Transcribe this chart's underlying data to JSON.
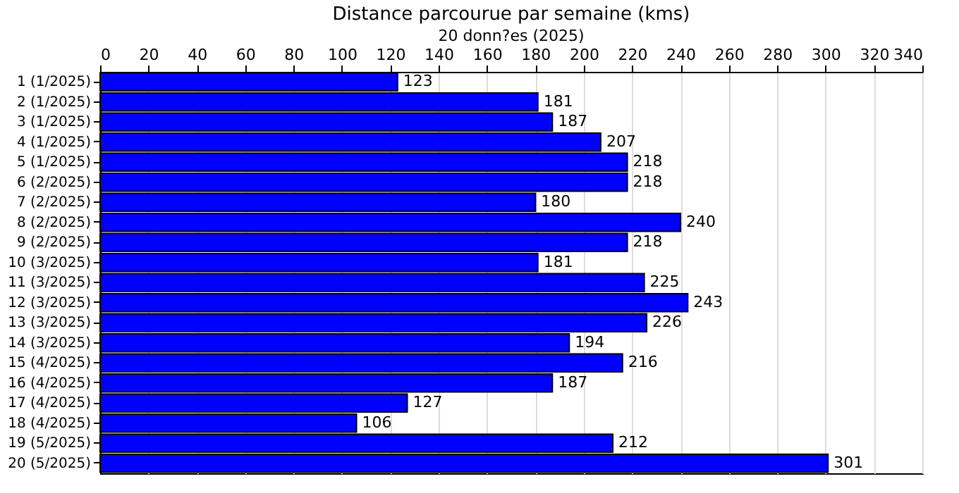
{
  "chart_data": {
    "type": "bar",
    "orientation": "horizontal",
    "title": "Distance parcourue par semaine (kms)",
    "subtitle": "20 donn?es (2025)",
    "categories": [
      "1 (1/2025)",
      "2 (1/2025)",
      "3 (1/2025)",
      "4 (1/2025)",
      "5 (1/2025)",
      "6 (2/2025)",
      "7 (2/2025)",
      "8 (2/2025)",
      "9 (2/2025)",
      "10 (3/2025)",
      "11 (3/2025)",
      "12 (3/2025)",
      "13 (3/2025)",
      "14 (3/2025)",
      "15 (4/2025)",
      "16 (4/2025)",
      "17 (4/2025)",
      "18 (4/2025)",
      "19 (5/2025)",
      "20 (5/2025)"
    ],
    "values": [
      123,
      181,
      187,
      207,
      218,
      218,
      180,
      240,
      218,
      181,
      225,
      243,
      226,
      194,
      216,
      187,
      127,
      106,
      212,
      301
    ],
    "color": "#0000ff",
    "data_labels": true,
    "grid": "x",
    "xlim": [
      0,
      340
    ],
    "xticks": [
      0,
      20,
      40,
      60,
      80,
      100,
      120,
      140,
      160,
      180,
      200,
      220,
      240,
      260,
      280,
      300,
      320,
      340
    ]
  }
}
